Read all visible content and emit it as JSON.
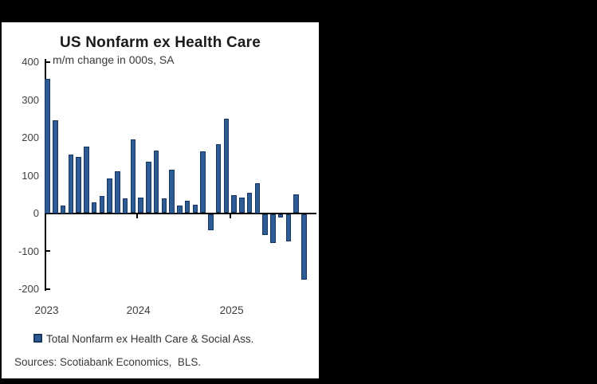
{
  "frame": {
    "band_color": "#000000",
    "panel_color": "#ffffff"
  },
  "header": {
    "title": "US Nonfarm ex Health Care",
    "subtitle": "m/m change in 000s, SA"
  },
  "legend": {
    "label": "Total Nonfarm ex Health Care & Social Ass.",
    "marker_fill": "#2D5C94",
    "marker_border": "#17375E"
  },
  "footer": {
    "sources": "Sources: Scotiabank Economics,  BLS."
  },
  "chart_data": {
    "type": "bar",
    "title": "US Nonfarm ex Health Care",
    "subtitle": "m/m change in 000s, SA",
    "ylabel": "m/m change in 000s, SA",
    "xlabel": "",
    "grid": false,
    "legend_position": "bottom",
    "legend_entries": [
      "Total Nonfarm ex Health Care & Social Ass."
    ],
    "bar_color": "#2D5C94",
    "bar_border_color": "#17375E",
    "axis_color": "#000000",
    "ylim": [
      -200,
      400
    ],
    "yticks": [
      400,
      300,
      200,
      100,
      0,
      -100,
      -200
    ],
    "year_labels": [
      "2023",
      "2024",
      "2025"
    ],
    "year_start_indices": [
      0,
      12,
      24
    ],
    "x": [
      "Jan-23",
      "Feb-23",
      "Mar-23",
      "Apr-23",
      "May-23",
      "Jun-23",
      "Jul-23",
      "Aug-23",
      "Sep-23",
      "Oct-23",
      "Nov-23",
      "Dec-23",
      "Jan-24",
      "Feb-24",
      "Mar-24",
      "Apr-24",
      "May-24",
      "Jun-24",
      "Jul-24",
      "Aug-24",
      "Sep-24",
      "Oct-24",
      "Nov-24",
      "Dec-24",
      "Jan-25",
      "Feb-25",
      "Mar-25",
      "Apr-25",
      "May-25",
      "Jun-25",
      "Jul-25",
      "Aug-25",
      "Sep-25",
      "Oct-25"
    ],
    "values": [
      355,
      245,
      20,
      155,
      148,
      176,
      28,
      46,
      91,
      110,
      40,
      194,
      41,
      136,
      166,
      39,
      115,
      20,
      32,
      22,
      163,
      -44,
      183,
      249,
      48,
      42,
      54,
      80,
      -56,
      -76,
      -10,
      -72,
      49,
      -174
    ]
  }
}
